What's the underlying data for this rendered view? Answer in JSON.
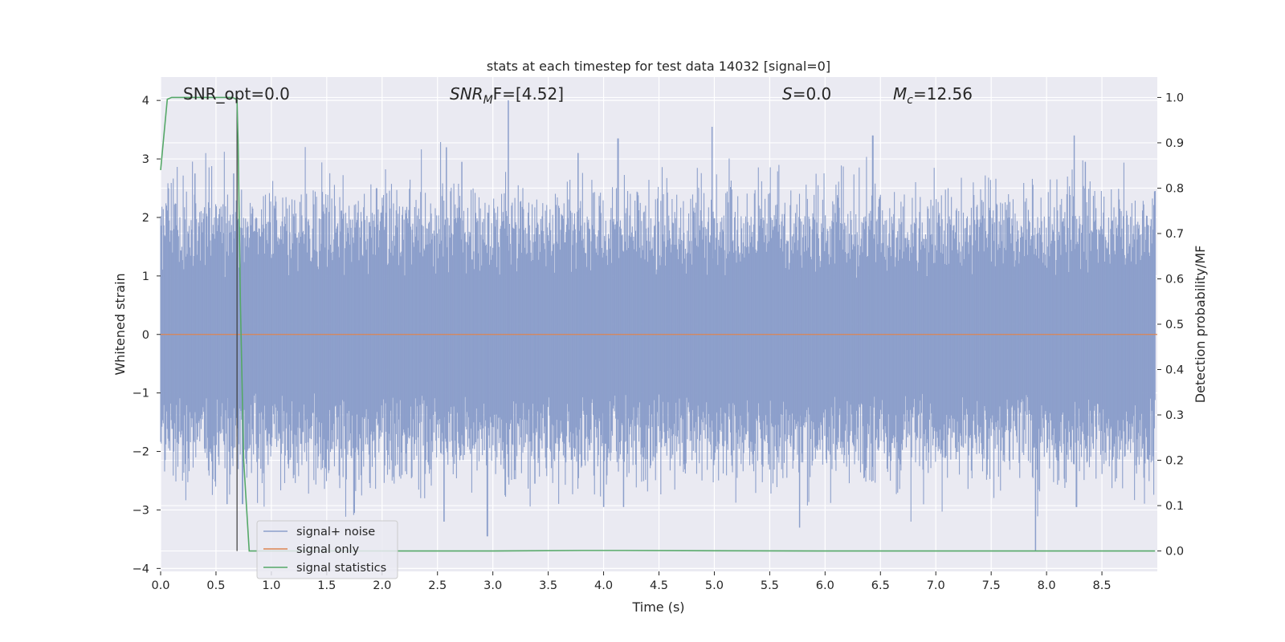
{
  "chart_data": {
    "type": "line",
    "title": "stats at each timestep for test data 14032 [signal=0]",
    "xlabel": "Time (s)",
    "ylabel": "Whitened strain",
    "y2label": "Detection probability/MF",
    "xlim": [
      0.0,
      9.0
    ],
    "ylim": [
      -4.05,
      4.4
    ],
    "y2lim": [
      -0.045,
      1.045
    ],
    "x_ticks": [
      0.0,
      0.5,
      1.0,
      1.5,
      2.0,
      2.5,
      3.0,
      3.5,
      4.0,
      4.5,
      5.0,
      5.5,
      6.0,
      6.5,
      7.0,
      7.5,
      8.0,
      8.5
    ],
    "x_tick_labels": [
      "0.0",
      "0.5",
      "1.0",
      "1.5",
      "2.0",
      "2.5",
      "3.0",
      "3.5",
      "4.0",
      "4.5",
      "5.0",
      "5.5",
      "6.0",
      "6.5",
      "7.0",
      "7.5",
      "8.0",
      "8.5"
    ],
    "y_ticks": [
      4,
      3,
      2,
      1,
      0,
      -1,
      -2,
      -3,
      -4
    ],
    "y_tick_labels": [
      "4",
      "3",
      "2",
      "1",
      "0",
      "−1",
      "−2",
      "−3",
      "−4"
    ],
    "y2_ticks": [
      1.0,
      0.9,
      0.8,
      0.7,
      0.6,
      0.5,
      0.4,
      0.3,
      0.2,
      0.1,
      0.0
    ],
    "y2_tick_labels": [
      "1.0",
      "0.9",
      "0.8",
      "0.7",
      "0.6",
      "0.5",
      "0.4",
      "0.3",
      "0.2",
      "0.1",
      "0.0"
    ],
    "grid": true,
    "legend_position": "lower-left",
    "vertical_line_x": 0.69,
    "annotations": {
      "snr_opt": "SNR_opt=0.0",
      "snr_mf_main": "SNR",
      "snr_mf_sub": "M",
      "snr_mf_rest": "F=[4.52]",
      "s_var": "S",
      "s_rest": "=0.0",
      "mc_var": "M",
      "mc_sub": "c",
      "mc_rest": "=12.56"
    },
    "series": [
      {
        "name": "signal+ noise",
        "color": "#8c9fcb",
        "description_type": "whitened noise timeseries",
        "peaks": [
          {
            "x": 0.07,
            "y": 2.5
          },
          {
            "x": 0.31,
            "y": 2.75
          },
          {
            "x": 0.66,
            "y": 2.75
          },
          {
            "x": 1.95,
            "y": 2.5
          },
          {
            "x": 2.58,
            "y": 3.2
          },
          {
            "x": 2.72,
            "y": 2.95
          },
          {
            "x": 3.14,
            "y": 4.0
          },
          {
            "x": 3.77,
            "y": 3.1
          },
          {
            "x": 4.13,
            "y": 3.35
          },
          {
            "x": 4.98,
            "y": 3.55
          },
          {
            "x": 6.43,
            "y": 3.4
          },
          {
            "x": 8.25,
            "y": 3.4
          },
          {
            "x": 8.35,
            "y": 2.95
          },
          {
            "x": 8.98,
            "y": 2.45
          }
        ],
        "troughs": [
          {
            "x": 0.6,
            "y": -2.9
          },
          {
            "x": 0.74,
            "y": -2.9
          },
          {
            "x": 1.75,
            "y": -3.05
          },
          {
            "x": 2.56,
            "y": -3.2
          },
          {
            "x": 2.95,
            "y": -3.45
          },
          {
            "x": 3.38,
            "y": -2.55
          },
          {
            "x": 4.0,
            "y": -2.95
          },
          {
            "x": 4.18,
            "y": -2.95
          },
          {
            "x": 5.77,
            "y": -3.3
          },
          {
            "x": 7.9,
            "y": -3.7
          },
          {
            "x": 8.27,
            "y": -2.95
          }
        ]
      },
      {
        "name": "signal only",
        "color": "#dd8452",
        "x": [
          0.0,
          9.0
        ],
        "y": [
          0.0,
          0.0
        ]
      },
      {
        "name": "signal statistics",
        "color": "#55a868",
        "axis": "right",
        "x": [
          0.0,
          0.06,
          0.1,
          0.15,
          0.3,
          0.5,
          0.65,
          0.69,
          0.7,
          0.72,
          0.75,
          0.8,
          0.82,
          1.5,
          3.0,
          3.8,
          4.2,
          6.0,
          8.98
        ],
        "y": [
          0.84,
          0.996,
          1.0,
          1.0,
          1.0,
          1.0,
          1.0,
          0.995,
          0.9,
          0.55,
          0.2,
          0.0,
          0.0,
          0.0,
          0.0,
          0.001,
          0.001,
          0.0,
          0.0
        ]
      }
    ]
  }
}
